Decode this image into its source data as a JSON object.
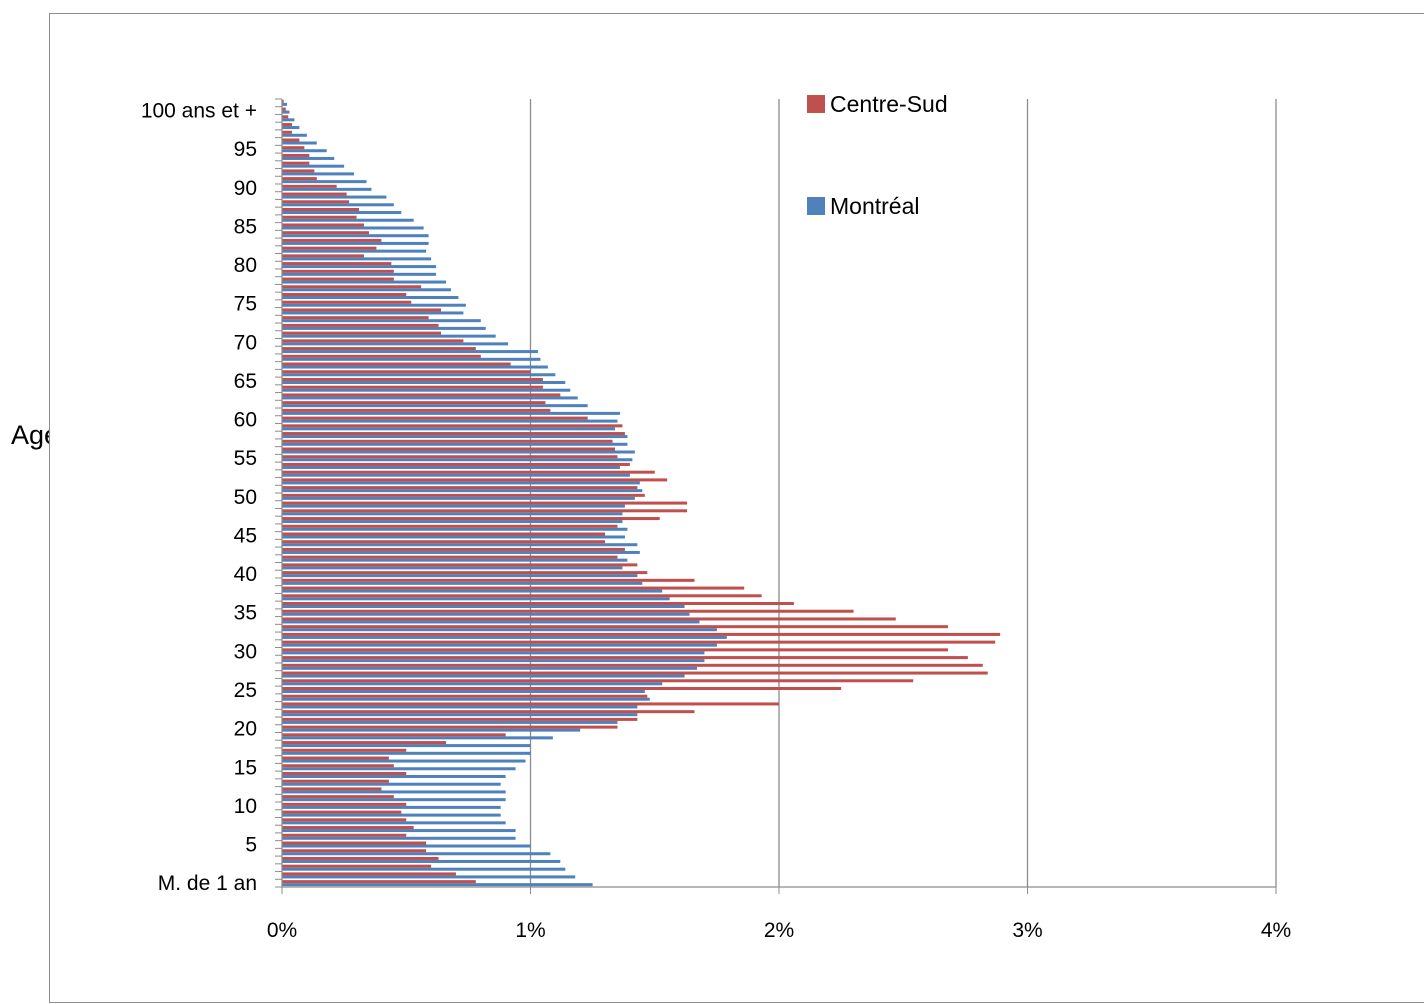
{
  "chart_data": {
    "type": "bar",
    "orientation": "horizontal",
    "title": "",
    "ylabel": "Age",
    "xlabel": "",
    "xlim": [
      0,
      4
    ],
    "x_unit": "%",
    "x_ticks": [
      "0%",
      "1%",
      "2%",
      "3%",
      "4%"
    ],
    "y_tick_labels": [
      {
        "age": 0,
        "label": "M. de 1 an"
      },
      {
        "age": 5,
        "label": "5"
      },
      {
        "age": 10,
        "label": "10"
      },
      {
        "age": 15,
        "label": "15"
      },
      {
        "age": 20,
        "label": "20"
      },
      {
        "age": 25,
        "label": "25"
      },
      {
        "age": 30,
        "label": "30"
      },
      {
        "age": 35,
        "label": "35"
      },
      {
        "age": 40,
        "label": "40"
      },
      {
        "age": 45,
        "label": "45"
      },
      {
        "age": 50,
        "label": "50"
      },
      {
        "age": 55,
        "label": "55"
      },
      {
        "age": 60,
        "label": "60"
      },
      {
        "age": 65,
        "label": "65"
      },
      {
        "age": 70,
        "label": "70"
      },
      {
        "age": 75,
        "label": "75"
      },
      {
        "age": 80,
        "label": "80"
      },
      {
        "age": 85,
        "label": "85"
      },
      {
        "age": 90,
        "label": "90"
      },
      {
        "age": 95,
        "label": "95"
      },
      {
        "age": 100,
        "label": "100 ans et +"
      }
    ],
    "grid": "vertical major gridlines",
    "legend_position": "top-right inside plot",
    "series": [
      {
        "name": "Centre-Sud",
        "color": "#c0504d",
        "values": [
          0.78,
          0.7,
          0.6,
          0.63,
          0.58,
          0.58,
          0.5,
          0.53,
          0.5,
          0.48,
          0.5,
          0.45,
          0.4,
          0.43,
          0.5,
          0.45,
          0.43,
          0.5,
          0.66,
          0.9,
          1.35,
          1.43,
          1.66,
          2.0,
          1.47,
          2.25,
          2.54,
          2.84,
          2.82,
          2.76,
          2.68,
          2.87,
          2.89,
          2.68,
          2.47,
          2.3,
          2.06,
          1.93,
          1.86,
          1.66,
          1.47,
          1.43,
          1.35,
          1.38,
          1.3,
          1.3,
          1.35,
          1.52,
          1.63,
          1.63,
          1.46,
          1.43,
          1.55,
          1.5,
          1.4,
          1.35,
          1.34,
          1.33,
          1.38,
          1.37,
          1.23,
          1.08,
          1.06,
          1.12,
          1.05,
          1.05,
          1.0,
          0.92,
          0.8,
          0.78,
          0.73,
          0.64,
          0.63,
          0.59,
          0.64,
          0.52,
          0.5,
          0.56,
          0.45,
          0.45,
          0.44,
          0.33,
          0.38,
          0.4,
          0.35,
          0.33,
          0.3,
          0.31,
          0.27,
          0.26,
          0.22,
          0.14,
          0.13,
          0.11,
          0.11,
          0.09,
          0.07,
          0.04,
          0.04,
          0.025,
          0.015,
          0.007
        ]
      },
      {
        "name": "Montréal",
        "color": "#4f81bd",
        "values": [
          1.25,
          1.18,
          1.14,
          1.12,
          1.08,
          1.0,
          0.94,
          0.94,
          0.9,
          0.88,
          0.88,
          0.9,
          0.9,
          0.88,
          0.9,
          0.94,
          0.98,
          1.0,
          1.0,
          1.09,
          1.2,
          1.35,
          1.43,
          1.43,
          1.48,
          1.46,
          1.53,
          1.62,
          1.67,
          1.7,
          1.7,
          1.75,
          1.79,
          1.75,
          1.68,
          1.64,
          1.62,
          1.56,
          1.53,
          1.45,
          1.43,
          1.37,
          1.39,
          1.44,
          1.43,
          1.38,
          1.39,
          1.37,
          1.37,
          1.38,
          1.42,
          1.45,
          1.44,
          1.4,
          1.36,
          1.41,
          1.42,
          1.39,
          1.39,
          1.34,
          1.35,
          1.36,
          1.23,
          1.19,
          1.16,
          1.14,
          1.1,
          1.07,
          1.04,
          1.03,
          0.91,
          0.86,
          0.82,
          0.8,
          0.73,
          0.74,
          0.71,
          0.68,
          0.66,
          0.62,
          0.62,
          0.6,
          0.58,
          0.59,
          0.59,
          0.57,
          0.53,
          0.48,
          0.45,
          0.42,
          0.36,
          0.34,
          0.29,
          0.25,
          0.21,
          0.18,
          0.14,
          0.1,
          0.07,
          0.05,
          0.03,
          0.02
        ]
      }
    ]
  }
}
